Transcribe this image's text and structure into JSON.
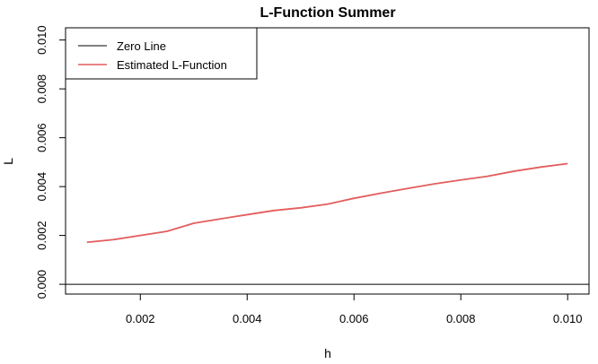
{
  "chart_data": {
    "type": "line",
    "title": "L-Function Summer",
    "xlabel": "h",
    "ylabel": "L",
    "xlim": [
      0.0006,
      0.0104
    ],
    "ylim": [
      -0.0004,
      0.0105
    ],
    "x_ticks": [
      0.002,
      0.004,
      0.006,
      0.008,
      0.01
    ],
    "x_tick_labels": [
      "0.002",
      "0.004",
      "0.006",
      "0.008",
      "0.010"
    ],
    "y_ticks": [
      0.0,
      0.002,
      0.004,
      0.006,
      0.008,
      0.01
    ],
    "y_tick_labels": [
      "0.000",
      "0.002",
      "0.004",
      "0.006",
      "0.008",
      "0.010"
    ],
    "grid": false,
    "legend_position": "top-left",
    "series": [
      {
        "name": "Zero Line",
        "color": "#000000",
        "style": "hline",
        "y": 0.0
      },
      {
        "name": "Estimated L-Function",
        "color": "#e35d5d",
        "style": "line",
        "x": [
          0.001,
          0.0015,
          0.002,
          0.0025,
          0.003,
          0.0035,
          0.004,
          0.0045,
          0.005,
          0.0055,
          0.006,
          0.0065,
          0.007,
          0.0075,
          0.008,
          0.0085,
          0.009,
          0.0095,
          0.01
        ],
        "y": [
          0.00172,
          0.00183,
          0.002,
          0.00217,
          0.0025,
          0.00268,
          0.00285,
          0.00302,
          0.00313,
          0.00328,
          0.00352,
          0.00373,
          0.00392,
          0.00411,
          0.00427,
          0.00442,
          0.00463,
          0.0048,
          0.00494
        ]
      }
    ]
  }
}
